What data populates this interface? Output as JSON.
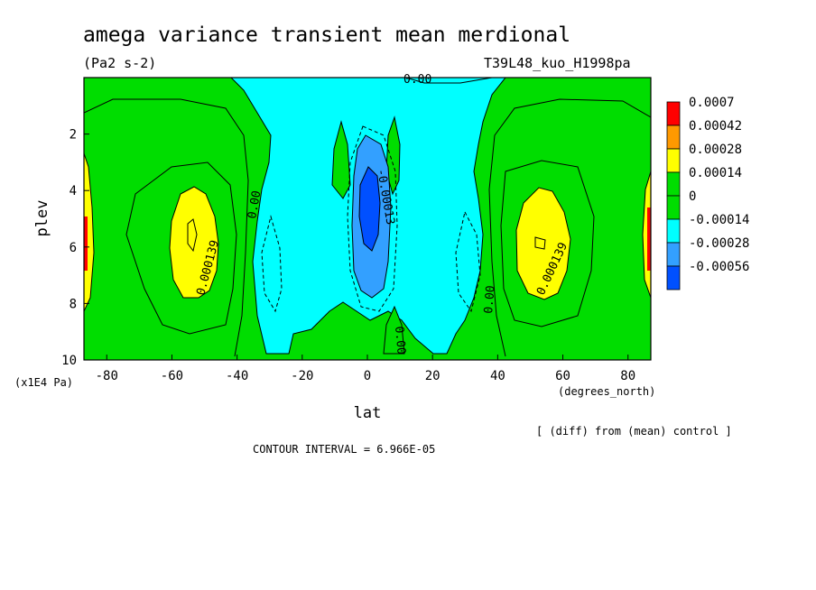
{
  "chart_data": {
    "type": "contour",
    "title": "amega variance transient mean merdional",
    "units": "(Pa2 s-2)",
    "experiment": "T39L48_kuo_H1998pa",
    "xlabel": "lat",
    "x_unit": "(degrees_north)",
    "ylabel": "plev",
    "y_unit": "(x1E4 Pa)",
    "xlim": [
      -87,
      87
    ],
    "ylim": [
      10,
      0
    ],
    "x_ticks": [
      -80,
      -60,
      -40,
      -20,
      0,
      20,
      40,
      60,
      80
    ],
    "x_tick_labels": [
      "-80",
      "-60",
      "-40",
      "-20",
      "0",
      "20",
      "40",
      "60",
      "80"
    ],
    "y_ticks": [
      2,
      4,
      6,
      8,
      10
    ],
    "y_tick_labels": [
      "2",
      "4",
      "6",
      "8",
      "10"
    ],
    "legend": {
      "labels": [
        "0.0007",
        "0.00042",
        "0.00028",
        "0.00014",
        "0",
        "-0.00014",
        "-0.00028",
        "-0.00056"
      ],
      "colors": [
        "#ff0000",
        "#ff9900",
        "#ffff00",
        "#00dd00",
        "#00dd00",
        "#00ffff",
        "#33a0ff",
        "#0050ff"
      ]
    },
    "contour_labels": [
      "0.00",
      "0.00",
      "0.000139",
      "0.000139",
      "-0.00013",
      "0.00",
      "0.00"
    ],
    "contour_interval": "CONTOUR INTERVAL = 6.966E-05",
    "note": "[ (diff) from (mean) control ]",
    "regions": [
      {
        "level": "-0.00014",
        "lat_range": [
          -33,
          33
        ],
        "plev_range": [
          0.0,
          10.0
        ]
      },
      {
        "level": "-0.00028",
        "lat_range": [
          -4,
          5
        ],
        "plev_range": [
          2.0,
          8.0
        ]
      },
      {
        "level": "-0.00056",
        "lat_range": [
          -2,
          3
        ],
        "plev_range": [
          3.5,
          6.5
        ]
      },
      {
        "level": "0.00014",
        "lat_range": [
          -60,
          -45
        ],
        "plev_range": [
          3.3,
          8.0
        ]
      },
      {
        "level": "0.00014",
        "lat_range": [
          46,
          62
        ],
        "plev_range": [
          3.3,
          8.0
        ]
      }
    ]
  }
}
